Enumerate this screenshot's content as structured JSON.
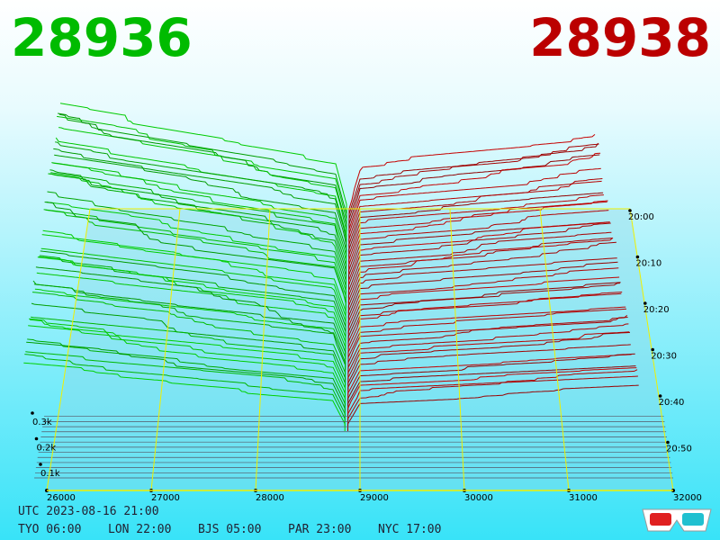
{
  "header": {
    "bid": "28936",
    "ask": "28938"
  },
  "price_axis": [
    "26000",
    "27000",
    "28000",
    "29000",
    "30000",
    "31000",
    "32000"
  ],
  "depth_axis": [
    "0.1k",
    "0.2k",
    "0.3k"
  ],
  "time_axis": [
    "20:00",
    "20:10",
    "20:20",
    "20:30",
    "20:40",
    "20:50"
  ],
  "footer": {
    "utc": "UTC 2023-08-16 21:00",
    "cities": [
      "TYO 06:00",
      "LON 22:00",
      "BJS 05:00",
      "PAR 23:00",
      "NYC 17:00"
    ]
  }
}
